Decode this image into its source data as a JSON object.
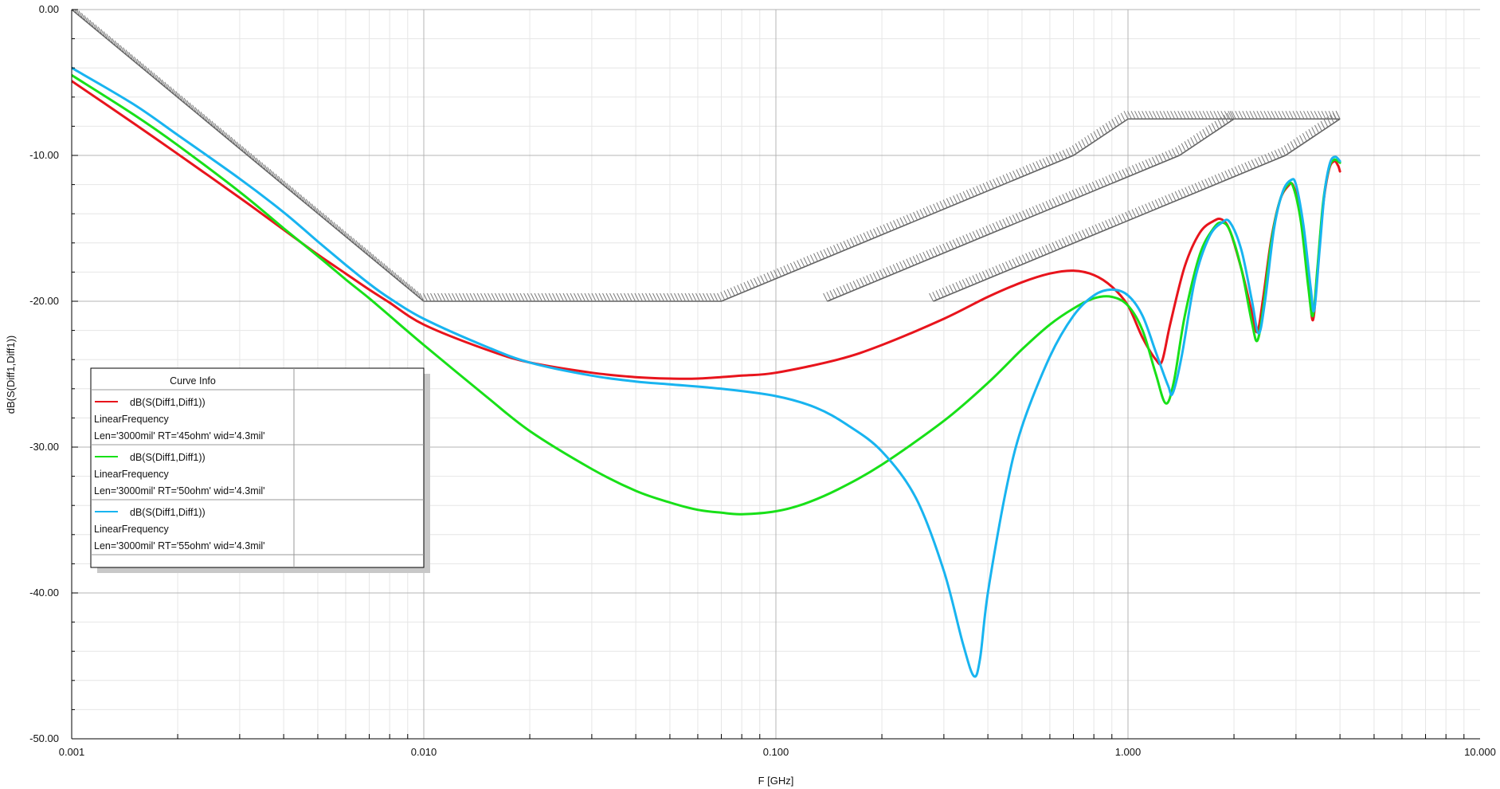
{
  "chart_data": {
    "type": "line",
    "xlabel": "F [GHz]",
    "ylabel": "dB(S(Diff1,Diff1))",
    "x_scale": "log",
    "xlim": [
      0.001,
      10.0
    ],
    "ylim": [
      -50,
      0
    ],
    "grid": true,
    "x_ticks": [
      "0.001",
      "0.010",
      "0.100",
      "1.000",
      "10.000"
    ],
    "y_ticks": [
      "0.00",
      "-10.00",
      "-20.00",
      "-30.00",
      "-40.00",
      "-50.00"
    ],
    "legend": {
      "title": "Curve Info",
      "placement": "left",
      "entries": [
        {
          "name": "dB(S(Diff1,Diff1))",
          "line2": "LinearFrequency",
          "line3": "Len='3000mil' RT='45ohm' wid='4.3mil'",
          "color": "#e8141c"
        },
        {
          "name": "dB(S(Diff1,Diff1))",
          "line2": "LinearFrequency",
          "line3": "Len='3000mil' RT='50ohm' wid='4.3mil'",
          "color": "#18e018"
        },
        {
          "name": "dB(S(Diff1,Diff1))",
          "line2": "LinearFrequency",
          "line3": "Len='3000mil' RT='55ohm' wid='4.3mil'",
          "color": "#18b4f0"
        }
      ]
    },
    "limit_lines": [
      {
        "points": [
          [
            0.001,
            0
          ],
          [
            0.01,
            -20
          ],
          [
            0.07,
            -20
          ],
          [
            0.7,
            -10
          ],
          [
            1.0,
            -7.5
          ],
          [
            4.0,
            -7.5
          ]
        ]
      },
      {
        "points": [
          [
            0.14,
            -20
          ],
          [
            1.4,
            -10
          ],
          [
            2.0,
            -7.5
          ]
        ]
      },
      {
        "points": [
          [
            0.28,
            -20
          ],
          [
            2.8,
            -10
          ],
          [
            4.0,
            -7.5
          ]
        ]
      }
    ],
    "series": [
      {
        "color": "#e8141c",
        "points": [
          [
            0.001,
            -4.9
          ],
          [
            0.0015,
            -7.8
          ],
          [
            0.002,
            -9.9
          ],
          [
            0.003,
            -12.9
          ],
          [
            0.004,
            -15.1
          ],
          [
            0.005,
            -16.8
          ],
          [
            0.006,
            -18.1
          ],
          [
            0.007,
            -19.2
          ],
          [
            0.008,
            -20.1
          ],
          [
            0.01,
            -21.6
          ],
          [
            0.015,
            -23.3
          ],
          [
            0.02,
            -24.2
          ],
          [
            0.03,
            -24.9
          ],
          [
            0.04,
            -25.2
          ],
          [
            0.05,
            -25.3
          ],
          [
            0.06,
            -25.3
          ],
          [
            0.08,
            -25.1
          ],
          [
            0.1,
            -24.9
          ],
          [
            0.15,
            -24.0
          ],
          [
            0.2,
            -23.0
          ],
          [
            0.3,
            -21.2
          ],
          [
            0.4,
            -19.7
          ],
          [
            0.5,
            -18.7
          ],
          [
            0.6,
            -18.1
          ],
          [
            0.7,
            -17.9
          ],
          [
            0.8,
            -18.2
          ],
          [
            0.9,
            -19.0
          ],
          [
            1.0,
            -20.3
          ],
          [
            1.1,
            -22.5
          ],
          [
            1.2,
            -24.0
          ],
          [
            1.25,
            -24.1
          ],
          [
            1.32,
            -21.5
          ],
          [
            1.45,
            -17.6
          ],
          [
            1.6,
            -15.3
          ],
          [
            1.75,
            -14.5
          ],
          [
            1.85,
            -14.4
          ],
          [
            1.95,
            -15.2
          ],
          [
            2.1,
            -17.8
          ],
          [
            2.25,
            -20.8
          ],
          [
            2.33,
            -22.1
          ],
          [
            2.42,
            -19.8
          ],
          [
            2.55,
            -15.8
          ],
          [
            2.7,
            -13.1
          ],
          [
            2.85,
            -12.1
          ],
          [
            2.95,
            -12.1
          ],
          [
            3.1,
            -14.2
          ],
          [
            3.25,
            -18.5
          ],
          [
            3.35,
            -21.3
          ],
          [
            3.45,
            -18.0
          ],
          [
            3.58,
            -13.5
          ],
          [
            3.72,
            -11.0
          ],
          [
            3.85,
            -10.4
          ],
          [
            3.95,
            -10.7
          ],
          [
            4.0,
            -11.1
          ]
        ]
      },
      {
        "color": "#18e018",
        "points": [
          [
            0.001,
            -4.5
          ],
          [
            0.0015,
            -7.2
          ],
          [
            0.002,
            -9.3
          ],
          [
            0.003,
            -12.5
          ],
          [
            0.004,
            -15.0
          ],
          [
            0.005,
            -16.9
          ],
          [
            0.006,
            -18.5
          ],
          [
            0.007,
            -19.8
          ],
          [
            0.008,
            -21.0
          ],
          [
            0.01,
            -23.0
          ],
          [
            0.015,
            -26.5
          ],
          [
            0.02,
            -28.9
          ],
          [
            0.03,
            -31.5
          ],
          [
            0.04,
            -33.0
          ],
          [
            0.05,
            -33.8
          ],
          [
            0.06,
            -34.3
          ],
          [
            0.07,
            -34.5
          ],
          [
            0.08,
            -34.6
          ],
          [
            0.1,
            -34.4
          ],
          [
            0.12,
            -33.9
          ],
          [
            0.15,
            -32.9
          ],
          [
            0.2,
            -31.2
          ],
          [
            0.3,
            -28.2
          ],
          [
            0.4,
            -25.6
          ],
          [
            0.5,
            -23.3
          ],
          [
            0.6,
            -21.6
          ],
          [
            0.7,
            -20.5
          ],
          [
            0.8,
            -19.8
          ],
          [
            0.9,
            -19.7
          ],
          [
            1.0,
            -20.3
          ],
          [
            1.1,
            -22.0
          ],
          [
            1.2,
            -25.0
          ],
          [
            1.28,
            -27.0
          ],
          [
            1.35,
            -25.5
          ],
          [
            1.45,
            -21.0
          ],
          [
            1.6,
            -16.8
          ],
          [
            1.75,
            -15.0
          ],
          [
            1.85,
            -14.6
          ],
          [
            1.95,
            -15.2
          ],
          [
            2.1,
            -17.8
          ],
          [
            2.25,
            -21.5
          ],
          [
            2.33,
            -22.7
          ],
          [
            2.42,
            -20.5
          ],
          [
            2.55,
            -16.0
          ],
          [
            2.7,
            -13.1
          ],
          [
            2.85,
            -12.0
          ],
          [
            2.95,
            -12.2
          ],
          [
            3.1,
            -14.6
          ],
          [
            3.25,
            -19.0
          ],
          [
            3.35,
            -21.0
          ],
          [
            3.45,
            -17.8
          ],
          [
            3.58,
            -13.3
          ],
          [
            3.72,
            -10.9
          ],
          [
            3.85,
            -10.3
          ],
          [
            4.0,
            -10.5
          ]
        ]
      },
      {
        "color": "#18b4f0",
        "points": [
          [
            0.001,
            -4.0
          ],
          [
            0.0015,
            -6.5
          ],
          [
            0.002,
            -8.6
          ],
          [
            0.003,
            -11.6
          ],
          [
            0.004,
            -13.9
          ],
          [
            0.005,
            -15.9
          ],
          [
            0.006,
            -17.5
          ],
          [
            0.007,
            -18.8
          ],
          [
            0.008,
            -19.8
          ],
          [
            0.01,
            -21.2
          ],
          [
            0.015,
            -23.1
          ],
          [
            0.02,
            -24.2
          ],
          [
            0.03,
            -25.1
          ],
          [
            0.04,
            -25.5
          ],
          [
            0.05,
            -25.7
          ],
          [
            0.07,
            -26.0
          ],
          [
            0.1,
            -26.5
          ],
          [
            0.13,
            -27.3
          ],
          [
            0.16,
            -28.5
          ],
          [
            0.2,
            -30.3
          ],
          [
            0.25,
            -33.5
          ],
          [
            0.3,
            -38.5
          ],
          [
            0.34,
            -43.5
          ],
          [
            0.365,
            -45.7
          ],
          [
            0.38,
            -44.5
          ],
          [
            0.4,
            -40.0
          ],
          [
            0.45,
            -33.0
          ],
          [
            0.5,
            -28.6
          ],
          [
            0.6,
            -23.8
          ],
          [
            0.7,
            -21.0
          ],
          [
            0.8,
            -19.6
          ],
          [
            0.9,
            -19.2
          ],
          [
            1.0,
            -19.6
          ],
          [
            1.1,
            -21.0
          ],
          [
            1.2,
            -23.5
          ],
          [
            1.3,
            -25.8
          ],
          [
            1.34,
            -26.3
          ],
          [
            1.42,
            -23.8
          ],
          [
            1.55,
            -18.5
          ],
          [
            1.7,
            -15.6
          ],
          [
            1.85,
            -14.6
          ],
          [
            1.95,
            -14.6
          ],
          [
            2.1,
            -16.5
          ],
          [
            2.25,
            -20.0
          ],
          [
            2.35,
            -22.2
          ],
          [
            2.45,
            -20.0
          ],
          [
            2.6,
            -15.0
          ],
          [
            2.75,
            -12.5
          ],
          [
            2.9,
            -11.7
          ],
          [
            3.0,
            -12.0
          ],
          [
            3.15,
            -14.8
          ],
          [
            3.3,
            -19.0
          ],
          [
            3.38,
            -20.6
          ],
          [
            3.5,
            -16.5
          ],
          [
            3.62,
            -12.5
          ],
          [
            3.75,
            -10.5
          ],
          [
            3.88,
            -10.1
          ],
          [
            4.0,
            -10.4
          ]
        ]
      }
    ]
  }
}
